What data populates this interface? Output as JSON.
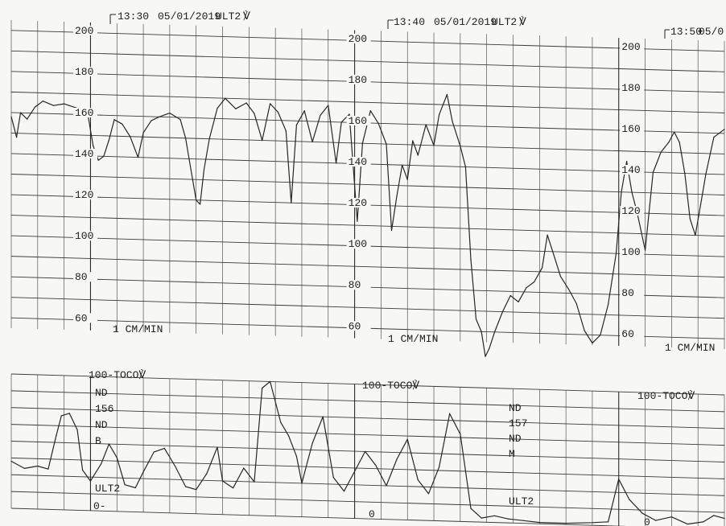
{
  "chart_data": [
    {
      "type": "line",
      "panel": "fetal-heart-rate",
      "title": "",
      "xlabel": "",
      "ylabel": "",
      "ylim": [
        50,
        210
      ],
      "y_ticks": [
        "200",
        "180",
        "160",
        "140",
        "120",
        "100",
        "80",
        "60"
      ],
      "scale_label": "1 CM/MIN",
      "time_markers": [
        {
          "time": "13:30",
          "date": "05/01/2019",
          "mode": "ULT2",
          "mark": "℣"
        },
        {
          "time": "13:40",
          "date": "05/01/2019",
          "mode": "ULT2",
          "mark": "℣"
        },
        {
          "time": "13:50",
          "date": "05/0",
          "mode": "",
          "mark": ""
        }
      ],
      "x_unit": "minutes from 13:27",
      "x_range": [
        0,
        27
      ],
      "grid": true,
      "series": [
        {
          "values": [
            [
              0.0,
              158
            ],
            [
              0.2,
              148
            ],
            [
              0.35,
              160
            ],
            [
              0.6,
              157
            ],
            [
              0.9,
              163
            ],
            [
              1.2,
              166
            ],
            [
              1.6,
              164
            ],
            [
              2.0,
              165
            ],
            [
              2.5,
              163
            ],
            [
              2.9,
              160
            ],
            [
              3.1,
              145
            ],
            [
              3.3,
              138
            ],
            [
              3.5,
              140
            ],
            [
              3.7,
              148
            ],
            [
              3.9,
              158
            ],
            [
              4.2,
              156
            ],
            [
              4.5,
              150
            ],
            [
              4.8,
              140
            ],
            [
              5.0,
              152
            ],
            [
              5.3,
              158
            ],
            [
              5.6,
              160
            ],
            [
              6.0,
              162
            ],
            [
              6.4,
              159
            ],
            [
              6.6,
              150
            ],
            [
              6.8,
              135
            ],
            [
              7.0,
              120
            ],
            [
              7.15,
              118
            ],
            [
              7.3,
              135
            ],
            [
              7.5,
              150
            ],
            [
              7.8,
              165
            ],
            [
              8.1,
              170
            ],
            [
              8.5,
              165
            ],
            [
              8.9,
              168
            ],
            [
              9.2,
              163
            ],
            [
              9.5,
              150
            ],
            [
              9.8,
              168
            ],
            [
              10.1,
              164
            ],
            [
              10.4,
              155
            ],
            [
              10.6,
              120
            ],
            [
              10.8,
              158
            ],
            [
              11.1,
              165
            ],
            [
              11.4,
              150
            ],
            [
              11.7,
              163
            ],
            [
              12.0,
              168
            ],
            [
              12.3,
              140
            ],
            [
              12.5,
              160
            ],
            [
              12.8,
              164
            ],
            [
              13.1,
              112
            ],
            [
              13.3,
              150
            ],
            [
              13.6,
              166
            ],
            [
              13.9,
              160
            ],
            [
              14.2,
              150
            ],
            [
              14.4,
              108
            ],
            [
              14.6,
              125
            ],
            [
              14.8,
              140
            ],
            [
              15.0,
              133
            ],
            [
              15.2,
              152
            ],
            [
              15.4,
              145
            ],
            [
              15.7,
              160
            ],
            [
              16.0,
              150
            ],
            [
              16.2,
              165
            ],
            [
              16.5,
              175
            ],
            [
              16.7,
              162
            ],
            [
              17.0,
              150
            ],
            [
              17.2,
              140
            ],
            [
              17.4,
              95
            ],
            [
              17.6,
              66
            ],
            [
              17.8,
              60
            ],
            [
              17.95,
              48
            ],
            [
              18.1,
              52
            ],
            [
              18.3,
              60
            ],
            [
              18.6,
              70
            ],
            [
              18.9,
              78
            ],
            [
              19.2,
              75
            ],
            [
              19.5,
              82
            ],
            [
              19.8,
              85
            ],
            [
              20.1,
              92
            ],
            [
              20.3,
              108
            ],
            [
              20.5,
              100
            ],
            [
              20.8,
              88
            ],
            [
              21.1,
              82
            ],
            [
              21.4,
              75
            ],
            [
              21.7,
              62
            ],
            [
              22.0,
              56
            ],
            [
              22.3,
              60
            ],
            [
              22.6,
              75
            ],
            [
              22.9,
              100
            ],
            [
              23.1,
              130
            ],
            [
              23.3,
              145
            ],
            [
              23.5,
              130
            ],
            [
              23.7,
              120
            ],
            [
              24.0,
              102
            ],
            [
              24.3,
              140
            ],
            [
              24.6,
              150
            ],
            [
              24.9,
              155
            ],
            [
              25.1,
              160
            ],
            [
              25.3,
              155
            ],
            [
              25.5,
              140
            ],
            [
              25.7,
              118
            ],
            [
              25.9,
              110
            ],
            [
              26.1,
              125
            ],
            [
              26.3,
              140
            ],
            [
              26.6,
              158
            ],
            [
              27.0,
              162
            ]
          ]
        }
      ]
    },
    {
      "type": "line",
      "panel": "uterine-activity",
      "title": "",
      "xlabel": "",
      "ylabel": "",
      "ylim": [
        0,
        100
      ],
      "y_ticks": [
        "100",
        "0"
      ],
      "channel_labels": [
        "100-TOCO℣",
        "100-TOCO℣",
        "100-TOCO℣"
      ],
      "bottom_labels": [
        "0-",
        "0",
        "0"
      ],
      "x_unit": "minutes from 13:27",
      "x_range": [
        0,
        27
      ],
      "grid": true,
      "series": [
        {
          "values": [
            [
              0.0,
              35
            ],
            [
              0.5,
              30
            ],
            [
              1.0,
              32
            ],
            [
              1.4,
              30
            ],
            [
              1.7,
              55
            ],
            [
              1.9,
              70
            ],
            [
              2.2,
              72
            ],
            [
              2.5,
              60
            ],
            [
              2.7,
              30
            ],
            [
              3.0,
              22
            ],
            [
              3.4,
              35
            ],
            [
              3.7,
              50
            ],
            [
              4.0,
              40
            ],
            [
              4.3,
              20
            ],
            [
              4.7,
              18
            ],
            [
              5.0,
              30
            ],
            [
              5.4,
              45
            ],
            [
              5.8,
              48
            ],
            [
              6.2,
              35
            ],
            [
              6.6,
              20
            ],
            [
              7.0,
              18
            ],
            [
              7.4,
              30
            ],
            [
              7.8,
              50
            ],
            [
              8.0,
              25
            ],
            [
              8.4,
              20
            ],
            [
              8.8,
              35
            ],
            [
              9.2,
              25
            ],
            [
              9.5,
              95
            ],
            [
              9.8,
              100
            ],
            [
              10.2,
              70
            ],
            [
              10.5,
              60
            ],
            [
              10.8,
              45
            ],
            [
              11.0,
              25
            ],
            [
              11.4,
              55
            ],
            [
              11.8,
              75
            ],
            [
              12.2,
              30
            ],
            [
              12.6,
              20
            ],
            [
              13.0,
              35
            ],
            [
              13.4,
              50
            ],
            [
              13.8,
              40
            ],
            [
              14.2,
              25
            ],
            [
              14.6,
              45
            ],
            [
              15.0,
              60
            ],
            [
              15.4,
              30
            ],
            [
              15.8,
              20
            ],
            [
              16.2,
              40
            ],
            [
              16.6,
              80
            ],
            [
              17.0,
              65
            ],
            [
              17.4,
              10
            ],
            [
              17.8,
              3
            ],
            [
              18.3,
              5
            ],
            [
              18.8,
              3
            ],
            [
              19.4,
              2
            ],
            [
              20.0,
              1
            ],
            [
              21.0,
              1
            ],
            [
              22.0,
              2
            ],
            [
              22.6,
              3
            ],
            [
              23.0,
              35
            ],
            [
              23.4,
              20
            ],
            [
              23.9,
              10
            ],
            [
              24.4,
              5
            ],
            [
              25.0,
              8
            ],
            [
              25.6,
              3
            ],
            [
              26.2,
              5
            ],
            [
              26.6,
              10
            ],
            [
              27.0,
              8
            ]
          ]
        }
      ]
    }
  ],
  "annotations": {
    "left_block": [
      "ND",
      "156",
      "ND",
      "B"
    ],
    "left_mode": "ULT2",
    "right_block": [
      "ND",
      "157",
      "ND",
      "M"
    ],
    "right_mode": "ULT2"
  }
}
